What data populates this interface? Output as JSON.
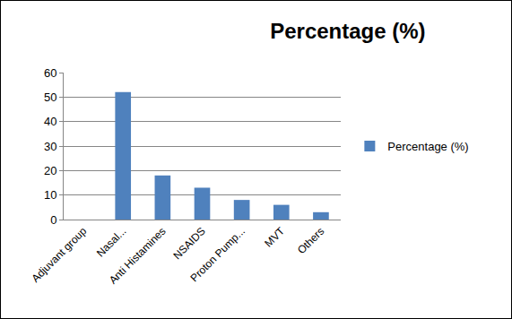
{
  "chart_data": {
    "type": "bar",
    "title": "Percentage (%)",
    "categories": [
      "Adjuvant group",
      "Nasal...",
      "Anti Histamines",
      "NSAIDS",
      "Proton Pump...",
      "MVT",
      "Others"
    ],
    "series": [
      {
        "name": "Percentage (%)",
        "color": "#4f81bd",
        "values": [
          null,
          52,
          18,
          13,
          8,
          6,
          3
        ]
      }
    ],
    "ylim": [
      0,
      60
    ],
    "yticks": [
      0,
      10,
      20,
      30,
      40,
      50,
      60
    ],
    "grid": true,
    "legend": "right"
  }
}
